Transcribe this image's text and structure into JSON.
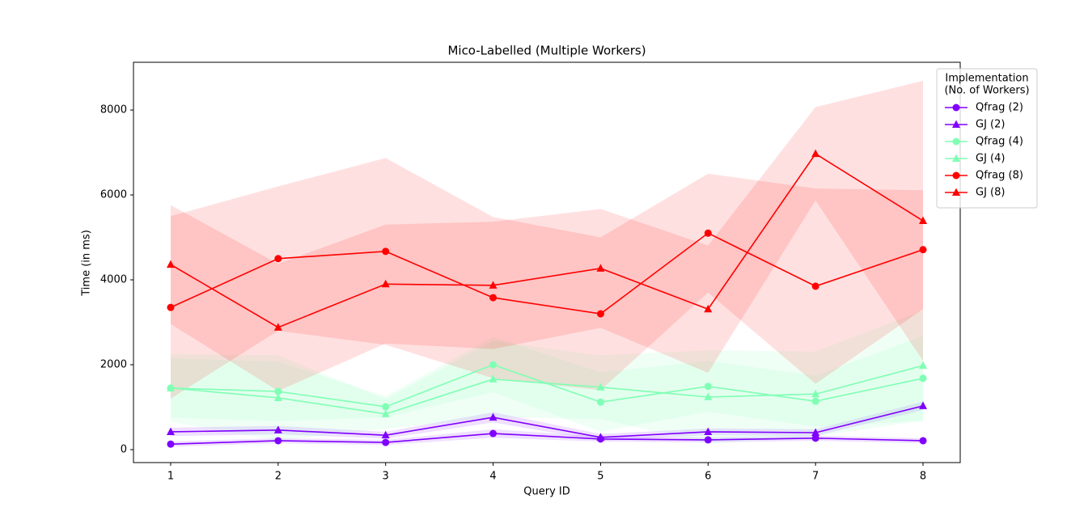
{
  "chart_data": {
    "type": "line",
    "title": "Mico-Labelled (Multiple Workers)",
    "x_label": "Query ID",
    "y_label": "Time (in ms)",
    "x": [
      1,
      2,
      3,
      4,
      5,
      6,
      7,
      8
    ],
    "xlim": [
      0.654,
      8.346
    ],
    "xticks": [
      1,
      2,
      3,
      4,
      5,
      6,
      7,
      8
    ],
    "ylim": [
      -305,
      9125
    ],
    "yticks": [
      0,
      2000,
      4000,
      6000,
      8000
    ],
    "legend_title": [
      "Implementation",
      "(No. of Workers)"
    ],
    "legend_position": "upper right outside",
    "series": [
      {
        "name": "Qfrag (2)",
        "color": "#8000ff",
        "marker": "circle",
        "values": [
          130,
          210,
          170,
          380,
          250,
          230,
          270,
          210
        ],
        "errors": [
          60,
          60,
          60,
          100,
          60,
          60,
          60,
          60
        ]
      },
      {
        "name": "GJ (2)",
        "color": "#8000ff",
        "marker": "triangle",
        "values": [
          420,
          460,
          340,
          760,
          290,
          420,
          400,
          1030
        ],
        "errors": [
          100,
          100,
          80,
          120,
          80,
          80,
          80,
          100
        ]
      },
      {
        "name": "Qfrag (4)",
        "color": "#80ffb4",
        "marker": "circle",
        "values": [
          1450,
          1370,
          1010,
          2000,
          1120,
          1490,
          1140,
          1680
        ],
        "errors": [
          700,
          700,
          250,
          650,
          700,
          600,
          600,
          1000
        ]
      },
      {
        "name": "GJ (4)",
        "color": "#80ffb4",
        "marker": "triangle",
        "values": [
          1450,
          1220,
          840,
          1660,
          1470,
          1240,
          1310,
          1980
        ],
        "errors": [
          800,
          1000,
          350,
          900,
          750,
          1100,
          1000,
          1300
        ]
      },
      {
        "name": "Qfrag (8)",
        "color": "#ff0000",
        "marker": "circle",
        "values": [
          3350,
          4500,
          4670,
          3580,
          3200,
          5100,
          3850,
          4710
        ],
        "errors": [
          2150,
          1700,
          2200,
          1900,
          1800,
          1400,
          2300,
          1400
        ]
      },
      {
        "name": "GJ (8)",
        "color": "#ff0000",
        "marker": "triangle",
        "values": [
          4360,
          2880,
          3900,
          3870,
          4270,
          3310,
          6970,
          5390
        ],
        "errors": [
          1400,
          1500,
          1400,
          1500,
          1400,
          1500,
          1100,
          3300
        ]
      }
    ]
  }
}
